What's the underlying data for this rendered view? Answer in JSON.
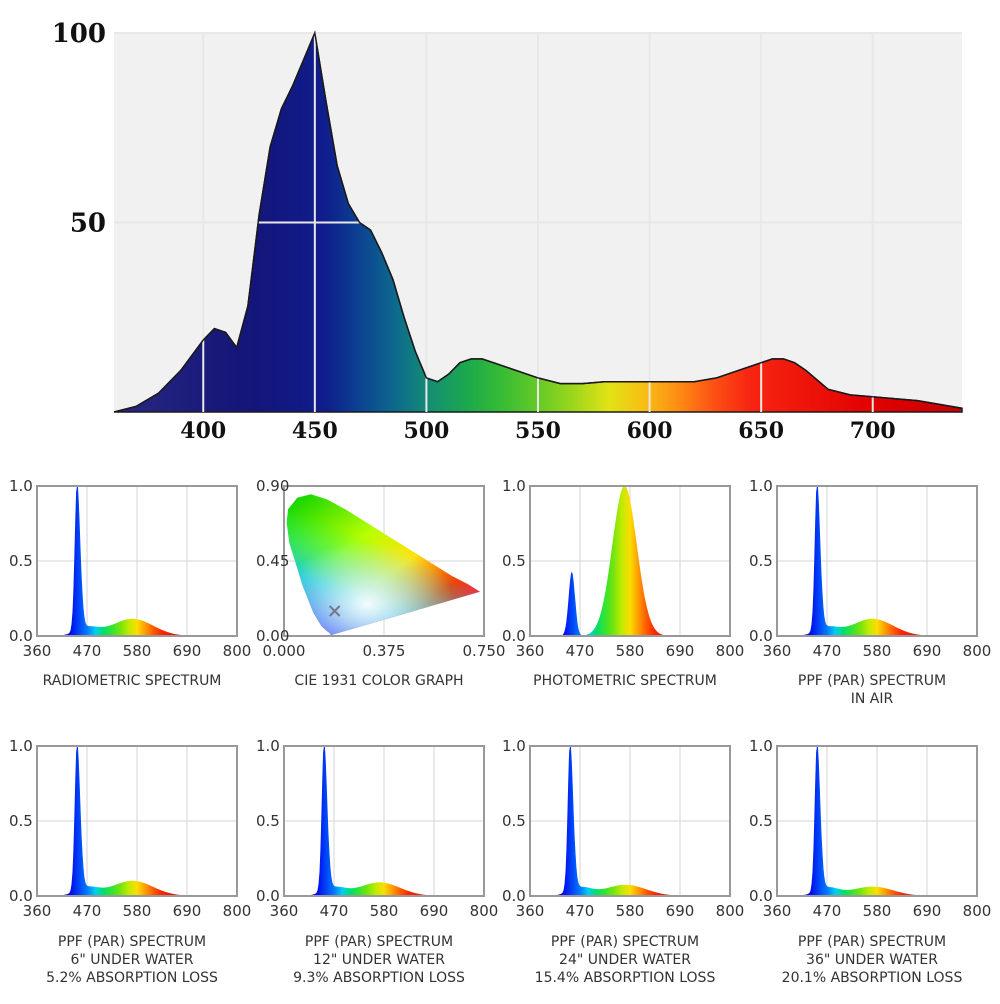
{
  "chart_data": [
    {
      "type": "area",
      "title": "",
      "xlabel": "",
      "ylabel": "",
      "xlim": [
        360,
        740
      ],
      "ylim": [
        0,
        100
      ],
      "x_ticks": [
        "400",
        "450",
        "500",
        "550",
        "600",
        "650",
        "700"
      ],
      "y_ticks": [
        "100",
        "50"
      ],
      "grid": true,
      "fill": "spectral",
      "series": [
        {
          "x": [
            360,
            370,
            380,
            390,
            400,
            405,
            410,
            415,
            420,
            425,
            430,
            435,
            440,
            445,
            450,
            455,
            460,
            465,
            470,
            475,
            480,
            485,
            490,
            495,
            500,
            505,
            510,
            515,
            520,
            525,
            530,
            540,
            550,
            560,
            570,
            580,
            590,
            600,
            610,
            620,
            630,
            640,
            650,
            655,
            660,
            665,
            670,
            680,
            690,
            700,
            710,
            720,
            730,
            740
          ],
          "y": [
            0,
            1.5,
            5,
            11,
            19,
            22,
            21,
            17,
            28,
            52,
            70,
            80,
            86,
            93,
            100,
            82,
            65,
            55,
            50,
            48,
            42,
            35,
            25,
            16,
            9,
            8,
            10,
            13,
            14,
            14,
            13,
            11,
            9,
            7.5,
            7.5,
            8,
            8,
            8,
            8,
            8,
            9,
            11,
            13,
            14,
            14,
            13,
            11,
            6,
            4.5,
            4,
            3.5,
            3,
            2,
            1
          ]
        }
      ]
    },
    {
      "type": "area",
      "caption": [
        "RADIOMETRIC SPECTRUM"
      ],
      "xlim": [
        360,
        800
      ],
      "ylim": [
        0,
        1
      ],
      "x_ticks": [
        "360",
        "470",
        "580",
        "690",
        "800"
      ],
      "y_ticks": [
        "1.0",
        "0.5",
        "0.0"
      ],
      "profile": "ppf",
      "absorption": 0
    },
    {
      "type": "scatter",
      "caption": [
        "CIE 1931 COLOR GRAPH"
      ],
      "xlim": [
        0,
        0.75
      ],
      "ylim": [
        0,
        0.9
      ],
      "x_ticks": [
        "0.000",
        "0.375",
        "0.750"
      ],
      "y_ticks": [
        "0.90",
        "0.45",
        "0.00"
      ],
      "point": [
        0.19,
        0.15
      ],
      "point_marker": "x"
    },
    {
      "type": "area",
      "caption": [
        "PHOTOMETRIC SPECTRUM"
      ],
      "xlim": [
        360,
        800
      ],
      "ylim": [
        0,
        1
      ],
      "x_ticks": [
        "360",
        "470",
        "580",
        "690",
        "800"
      ],
      "y_ticks": [
        "1.0",
        "0.5",
        "0.0"
      ],
      "profile": "photometric",
      "absorption": 0
    },
    {
      "type": "area",
      "caption": [
        "PPF (PAR) SPECTRUM",
        "IN AIR"
      ],
      "xlim": [
        360,
        800
      ],
      "ylim": [
        0,
        1
      ],
      "x_ticks": [
        "360",
        "470",
        "580",
        "690",
        "800"
      ],
      "y_ticks": [
        "1.0",
        "0.5",
        "0.0"
      ],
      "profile": "ppf",
      "absorption": 0
    },
    {
      "type": "area",
      "caption": [
        "PPF (PAR) SPECTRUM",
        "6\" UNDER WATER",
        "5.2% ABSORPTION LOSS"
      ],
      "xlim": [
        360,
        800
      ],
      "ylim": [
        0,
        1
      ],
      "x_ticks": [
        "360",
        "470",
        "580",
        "690",
        "800"
      ],
      "y_ticks": [
        "1.0",
        "0.5",
        "0.0"
      ],
      "profile": "ppf",
      "absorption": 0.052
    },
    {
      "type": "area",
      "caption": [
        "PPF (PAR) SPECTRUM",
        "12\" UNDER WATER",
        "9.3% ABSORPTION LOSS"
      ],
      "xlim": [
        360,
        800
      ],
      "ylim": [
        0,
        1
      ],
      "x_ticks": [
        "360",
        "470",
        "580",
        "690",
        "800"
      ],
      "y_ticks": [
        "1.0",
        "0.5",
        "0.0"
      ],
      "profile": "ppf",
      "absorption": 0.093
    },
    {
      "type": "area",
      "caption": [
        "PPF (PAR) SPECTRUM",
        "24\" UNDER WATER",
        "15.4% ABSORPTION LOSS"
      ],
      "xlim": [
        360,
        800
      ],
      "ylim": [
        0,
        1
      ],
      "x_ticks": [
        "360",
        "470",
        "580",
        "690",
        "800"
      ],
      "y_ticks": [
        "1.0",
        "0.5",
        "0.0"
      ],
      "profile": "ppf",
      "absorption": 0.154
    },
    {
      "type": "area",
      "caption": [
        "PPF (PAR) SPECTRUM",
        "36\" UNDER WATER",
        "20.1% ABSORPTION LOSS"
      ],
      "xlim": [
        360,
        800
      ],
      "ylim": [
        0,
        1
      ],
      "x_ticks": [
        "360",
        "470",
        "580",
        "690",
        "800"
      ],
      "y_ticks": [
        "1.0",
        "0.5",
        "0.0"
      ],
      "profile": "ppf",
      "absorption": 0.201
    }
  ]
}
